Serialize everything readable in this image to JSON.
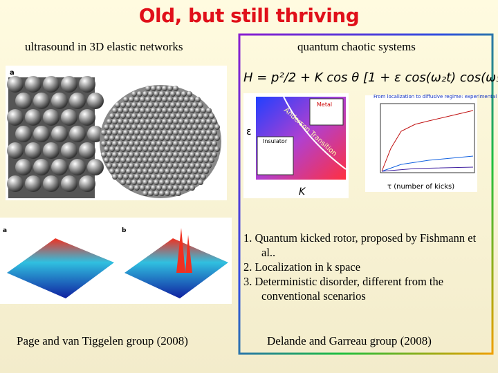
{
  "title": "Old, but still thriving",
  "left": {
    "caption": "ultrasound in 3D elastic networks",
    "panel_a": "a",
    "panel_b": "b",
    "credit": "Page and van Tiggelen group (2008)"
  },
  "right": {
    "caption": "quantum chaotic systems",
    "figure": {
      "metal": "Metal",
      "insulator": "Insulator",
      "transition": "Anderson Transition",
      "epsilon": "ε",
      "k": "K",
      "graph_title": "From localization to diffusive regime: experimental results",
      "graph_xlabel": "τ (number of kicks)"
    },
    "list": [
      "1.  Quantum kicked rotor, proposed by Fishmann et al..",
      "2. Localization in k space",
      "3. Deterministic disorder, different from the conventional scenarios"
    ],
    "credit": "Delande and Garreau group (2008)"
  }
}
